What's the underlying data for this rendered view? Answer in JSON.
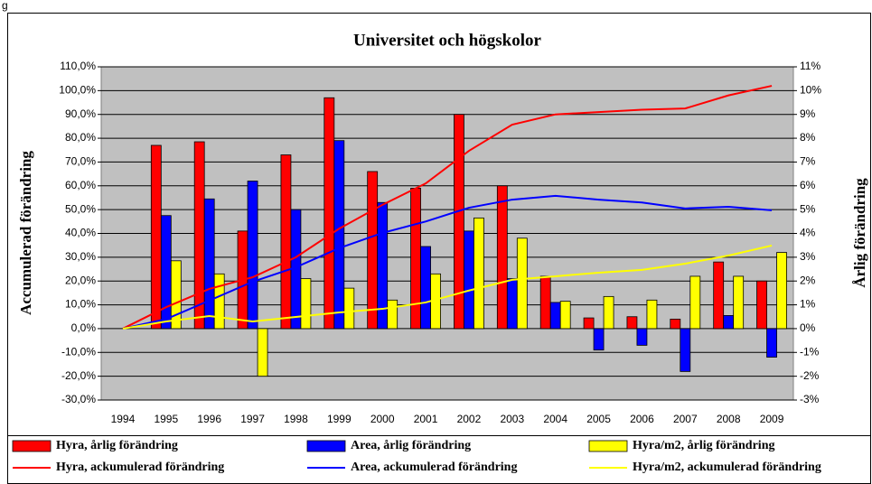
{
  "corner_text": "g",
  "chart_data": {
    "type": "bar_line",
    "title": "Universitet och högskolor",
    "y_label": "Accumulerad förändring",
    "y2_label": "Årlig förändring",
    "categories": [
      "1994",
      "1995",
      "1996",
      "1997",
      "1998",
      "1999",
      "2000",
      "2001",
      "2002",
      "2003",
      "2004",
      "2005",
      "2006",
      "2007",
      "2008",
      "2009"
    ],
    "ylim": [
      -30,
      110
    ],
    "yticks": [
      {
        "value": -30,
        "label": "-30,0%"
      },
      {
        "value": -20,
        "label": "-20,0%"
      },
      {
        "value": -10,
        "label": "-10,0%"
      },
      {
        "value": 0,
        "label": "0,0%"
      },
      {
        "value": 10,
        "label": "10,0%"
      },
      {
        "value": 20,
        "label": "20,0%"
      },
      {
        "value": 30,
        "label": "30,0%"
      },
      {
        "value": 40,
        "label": "40,0%"
      },
      {
        "value": 50,
        "label": "50,0%"
      },
      {
        "value": 60,
        "label": "60,0%"
      },
      {
        "value": 70,
        "label": "70,0%"
      },
      {
        "value": 80,
        "label": "80,0%"
      },
      {
        "value": 90,
        "label": "90,0%"
      },
      {
        "value": 100,
        "label": "100,0%"
      },
      {
        "value": 110,
        "label": "110,0%"
      }
    ],
    "y2lim": [
      -3,
      11
    ],
    "y2ticks": [
      {
        "value": -3,
        "label": "-3%"
      },
      {
        "value": -2,
        "label": "-2%"
      },
      {
        "value": -1,
        "label": "-1%"
      },
      {
        "value": 0,
        "label": "0%"
      },
      {
        "value": 1,
        "label": "1%"
      },
      {
        "value": 2,
        "label": "2%"
      },
      {
        "value": 3,
        "label": "3%"
      },
      {
        "value": 4,
        "label": "4%"
      },
      {
        "value": 5,
        "label": "5%"
      },
      {
        "value": 6,
        "label": "6%"
      },
      {
        "value": 7,
        "label": "7%"
      },
      {
        "value": 8,
        "label": "8%"
      },
      {
        "value": 9,
        "label": "9%"
      },
      {
        "value": 10,
        "label": "10%"
      },
      {
        "value": 11,
        "label": "11%"
      }
    ],
    "grid": true,
    "series": [
      {
        "name": "Hyra, årlig förändring",
        "type": "bar",
        "axis": "y2",
        "color": "#ff0000",
        "values": [
          null,
          7.7,
          7.85,
          4.1,
          7.3,
          9.7,
          6.6,
          5.9,
          9.0,
          6.0,
          2.2,
          0.45,
          0.5,
          0.4,
          2.8,
          2.0
        ]
      },
      {
        "name": "Area, årlig förändring",
        "type": "bar",
        "axis": "y2",
        "color": "#0000ff",
        "values": [
          null,
          4.75,
          5.45,
          6.2,
          5.0,
          7.9,
          5.3,
          3.45,
          4.1,
          2.1,
          1.1,
          -0.9,
          -0.7,
          -1.8,
          0.55,
          -1.2
        ]
      },
      {
        "name": "Hyra/m2, årlig förändring",
        "type": "bar",
        "axis": "y2",
        "color": "#ffff00",
        "values": [
          null,
          2.85,
          2.3,
          -2.0,
          2.1,
          1.7,
          1.2,
          2.3,
          4.65,
          3.8,
          1.15,
          1.35,
          1.2,
          2.2,
          2.2,
          3.2
        ]
      },
      {
        "name": "Hyra, ackumulerad förändring",
        "type": "line",
        "color": "#ff0000",
        "values": [
          0,
          9,
          16.7,
          21.6,
          30,
          42,
          52,
          61,
          74.7,
          85.7,
          90,
          91,
          92,
          92.5,
          98,
          102
        ]
      },
      {
        "name": "Area, ackumulerad förändring",
        "type": "line",
        "color": "#0000ff",
        "values": [
          0,
          4,
          11.8,
          19.7,
          25.8,
          33.8,
          40.2,
          45,
          50.8,
          54.2,
          55.8,
          54.2,
          53,
          50.5,
          51.2,
          49.7
        ]
      },
      {
        "name": "Hyra/m2, ackumulerad förändring",
        "type": "line",
        "color": "#ffff00",
        "values": [
          0,
          3,
          5.3,
          3,
          4.9,
          6.8,
          8.3,
          11,
          16,
          20.5,
          22,
          23.5,
          24.7,
          27.3,
          30.7,
          34.9
        ]
      }
    ]
  }
}
